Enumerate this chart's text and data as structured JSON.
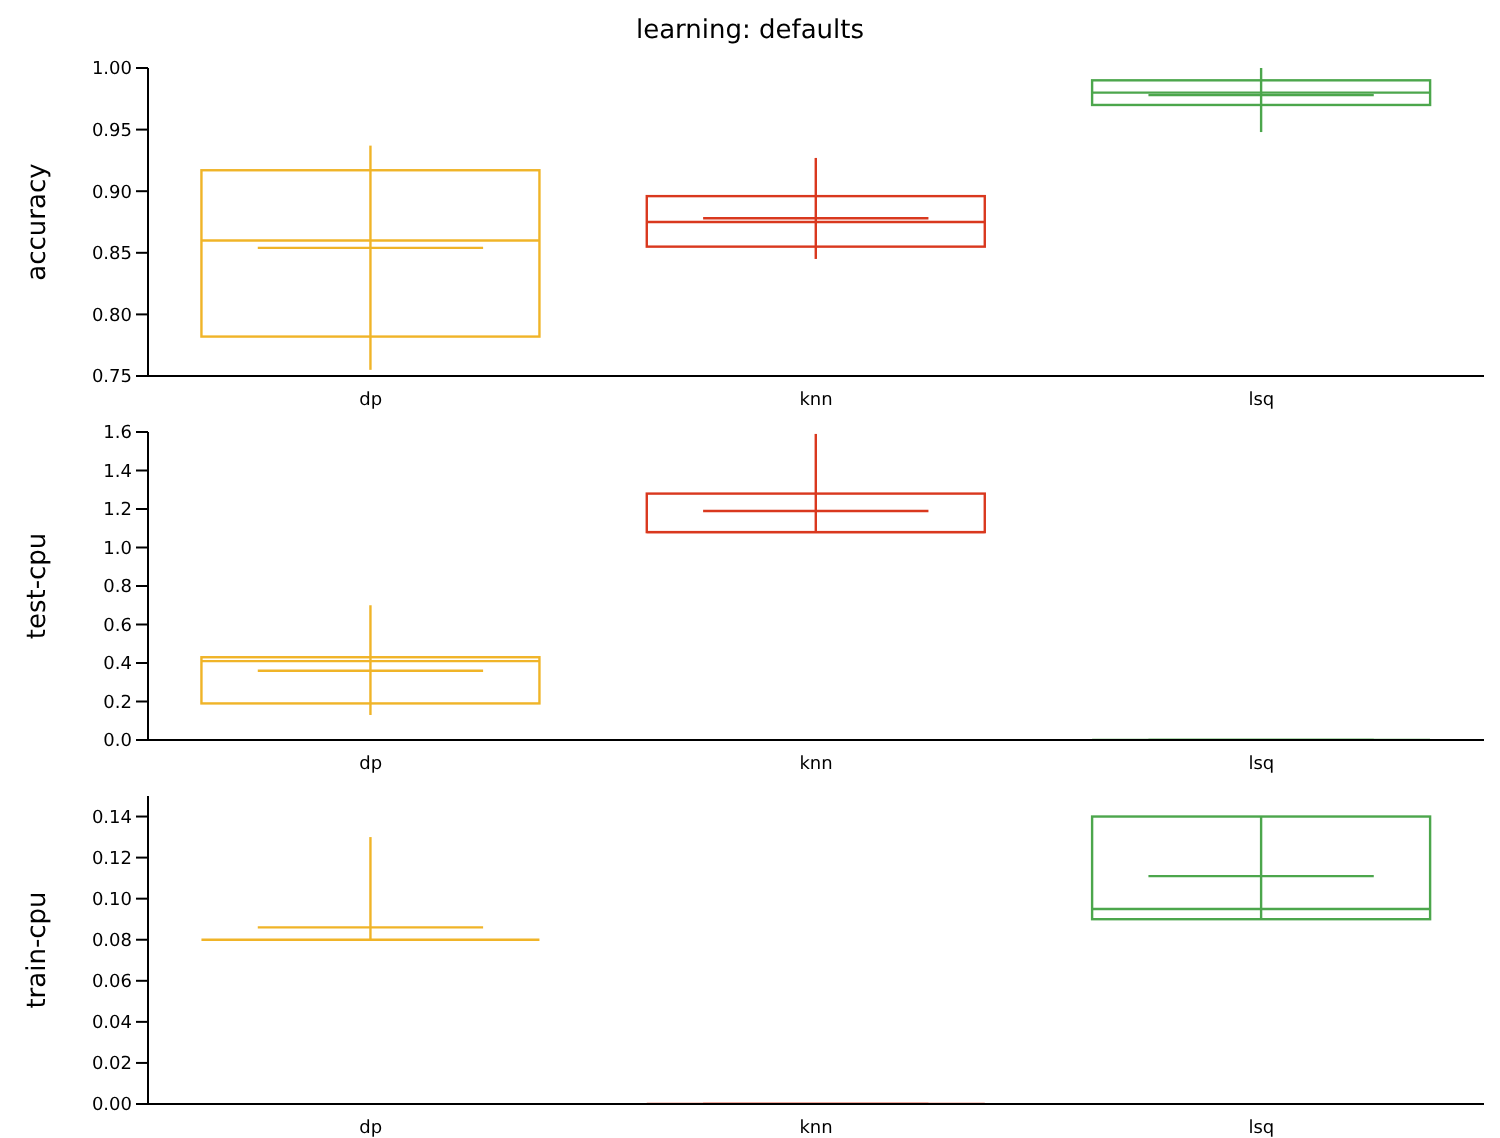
{
  "chart_data": [
    {
      "type": "box",
      "title": "learning: defaults",
      "ylabel": "accuracy",
      "categories": [
        "dp",
        "knn",
        "lsq"
      ],
      "colors": [
        "#f0b428",
        "#d9381e",
        "#4ca64c"
      ],
      "ylim": [
        0.75,
        1.0
      ],
      "yticks": [
        {
          "value": 0.75,
          "label": "0.75"
        },
        {
          "value": 0.8,
          "label": "0.80"
        },
        {
          "value": 0.85,
          "label": "0.85"
        },
        {
          "value": 0.9,
          "label": "0.90"
        },
        {
          "value": 0.95,
          "label": "0.95"
        },
        {
          "value": 1.0,
          "label": "1.00"
        }
      ],
      "boxes": [
        {
          "low": 0.755,
          "q1": 0.782,
          "median": 0.86,
          "q3": 0.917,
          "high": 0.937,
          "mean": 0.854
        },
        {
          "low": 0.845,
          "q1": 0.855,
          "median": 0.875,
          "q3": 0.896,
          "high": 0.927,
          "mean": 0.878
        },
        {
          "low": 0.948,
          "q1": 0.97,
          "median": 0.98,
          "q3": 0.99,
          "high": 1.0,
          "mean": 0.978
        }
      ]
    },
    {
      "type": "box",
      "ylabel": "test-cpu",
      "categories": [
        "dp",
        "knn",
        "lsq"
      ],
      "colors": [
        "#f0b428",
        "#d9381e",
        "#4ca64c"
      ],
      "ylim": [
        0,
        1.6
      ],
      "yticks": [
        {
          "value": 0,
          "label": "0.0"
        },
        {
          "value": 0.2,
          "label": "0.2"
        },
        {
          "value": 0.4,
          "label": "0.4"
        },
        {
          "value": 0.6,
          "label": "0.6"
        },
        {
          "value": 0.8,
          "label": "0.8"
        },
        {
          "value": 1.0,
          "label": "1.0"
        },
        {
          "value": 1.2,
          "label": "1.2"
        },
        {
          "value": 1.4,
          "label": "1.4"
        },
        {
          "value": 1.6,
          "label": "1.6"
        }
      ],
      "boxes": [
        {
          "low": 0.13,
          "q1": 0.19,
          "median": 0.41,
          "q3": 0.43,
          "high": 0.7,
          "mean": 0.36
        },
        {
          "low": 1.08,
          "q1": 1.08,
          "median": 1.08,
          "q3": 1.28,
          "high": 1.59,
          "mean": 1.19
        },
        {
          "low": 0,
          "q1": 0,
          "median": 0,
          "q3": 0,
          "high": 0,
          "mean": 0
        }
      ]
    },
    {
      "type": "box",
      "ylabel": "train-cpu",
      "categories": [
        "dp",
        "knn",
        "lsq"
      ],
      "colors": [
        "#f0b428",
        "#d9381e",
        "#4ca64c"
      ],
      "ylim": [
        0,
        0.15
      ],
      "yticks": [
        {
          "value": 0,
          "label": "0.00"
        },
        {
          "value": 0.02,
          "label": "0.02"
        },
        {
          "value": 0.04,
          "label": "0.04"
        },
        {
          "value": 0.06,
          "label": "0.06"
        },
        {
          "value": 0.08,
          "label": "0.08"
        },
        {
          "value": 0.1,
          "label": "0.10"
        },
        {
          "value": 0.12,
          "label": "0.12"
        },
        {
          "value": 0.14,
          "label": "0.14"
        }
      ],
      "boxes": [
        {
          "low": 0.08,
          "q1": 0.08,
          "median": 0.08,
          "q3": 0.08,
          "high": 0.13,
          "mean": 0.086
        },
        {
          "low": 0,
          "q1": 0,
          "median": 0,
          "q3": 0,
          "high": 0,
          "mean": 0
        },
        {
          "low": 0.09,
          "q1": 0.09,
          "median": 0.095,
          "q3": 0.14,
          "high": 0.14,
          "mean": 0.111
        }
      ]
    }
  ]
}
